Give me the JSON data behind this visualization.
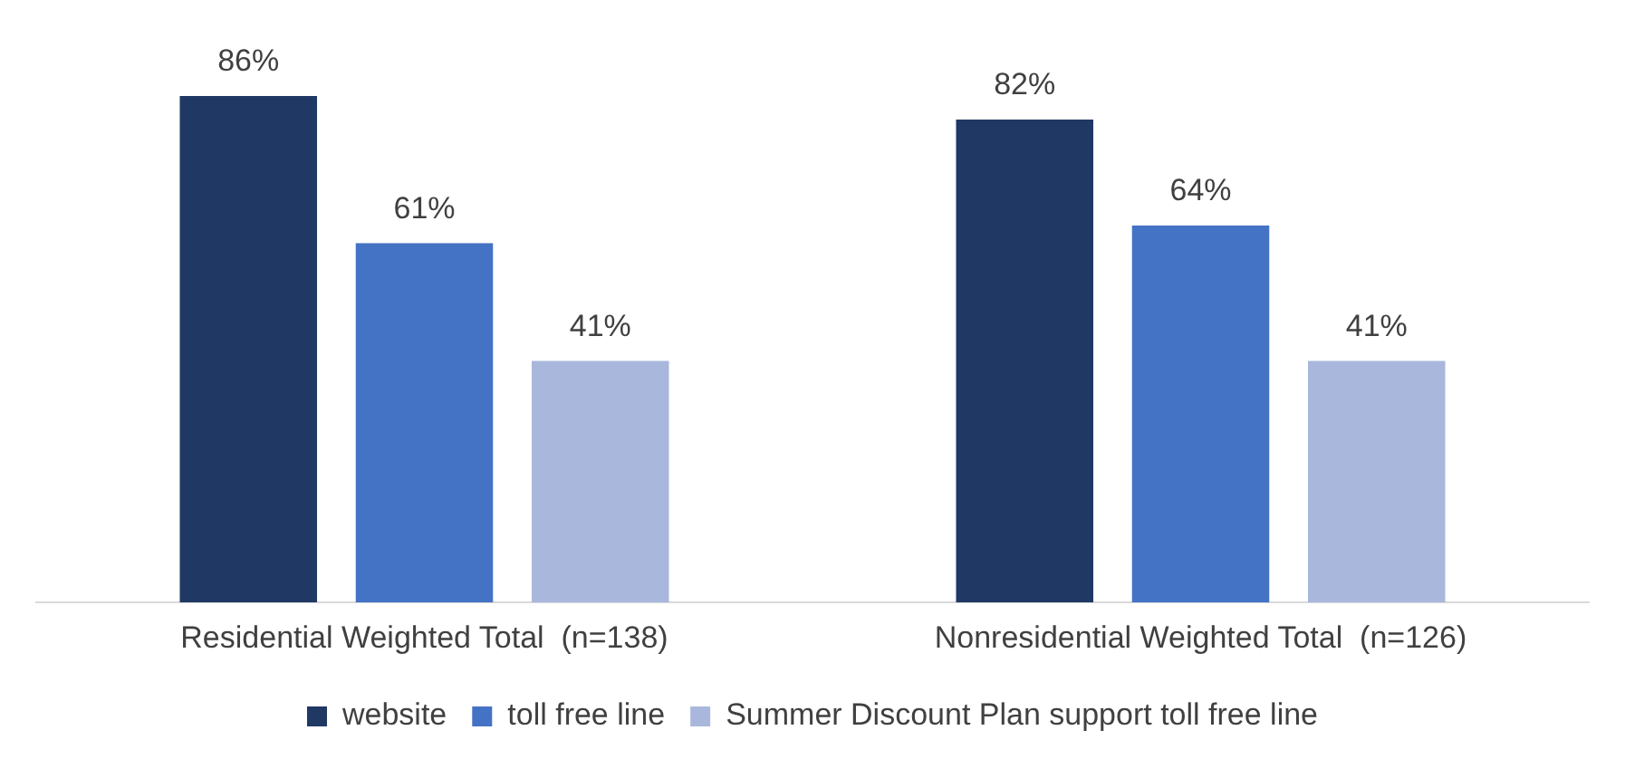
{
  "chart_data": {
    "type": "bar",
    "categories": [
      "Residential Weighted Total  (n=138)",
      "Nonresidential Weighted Total  (n=126)"
    ],
    "series": [
      {
        "name": "website",
        "color": "#203864",
        "values": [
          86,
          82
        ],
        "value_labels": [
          "86%",
          "82%"
        ]
      },
      {
        "name": "toll free line",
        "color": "#4472c4",
        "values": [
          61,
          64
        ],
        "value_labels": [
          "61%",
          "64%"
        ]
      },
      {
        "name": "Summer Discount Plan support toll free line",
        "color": "#a9b7dc",
        "values": [
          41,
          41
        ],
        "value_labels": [
          "41%",
          "41%"
        ]
      }
    ],
    "legend": "bottom"
  }
}
